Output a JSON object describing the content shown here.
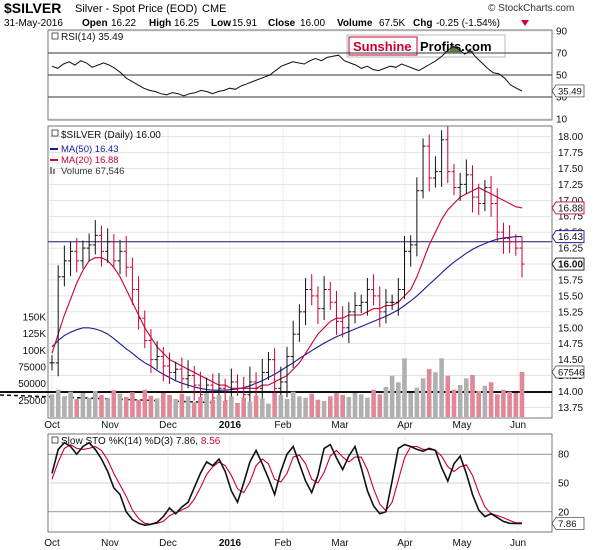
{
  "header": {
    "symbol": "$SILVER",
    "name": "Silver - Spot Price (EOD)",
    "exchange": "CME",
    "date": "31-May-2016",
    "open_label": "Open",
    "open": "16.22",
    "high_label": "High",
    "high": "16.25",
    "low_label": "Low",
    "low": "15.91",
    "close_label": "Close",
    "close": "16.00",
    "volume_label": "Volume",
    "volume": "67.5K",
    "chg_label": "Chg",
    "chg": "-0.25 (-1.54%)",
    "watermark": "© StockCharts.com",
    "brand_sunshine": "Sunshine",
    "brand_profits": "Profits.com"
  },
  "colors": {
    "ma20": "#cc0033",
    "ma50": "#1a1a99",
    "up": "#111111",
    "down": "#cc0033",
    "volume": "#b0b0b0",
    "volume_down": "#e08898",
    "overbought_fill": "#5a7a4a",
    "oversold_fill": "#c09090",
    "grid": "#c8c8c8",
    "hline": "#1a1a66"
  },
  "chart_data": [
    {
      "type": "line",
      "panel": "rsi",
      "label": "RSI(14) 35.49",
      "yticks": [
        10,
        30,
        50,
        70,
        90
      ],
      "ylim": [
        10,
        90
      ],
      "last_value_label": "35.49",
      "last_value": 35.49,
      "reference_lines": [
        30,
        50,
        70
      ],
      "series": [
        {
          "name": "RSI(14)",
          "values": [
            58,
            56,
            60,
            62,
            59,
            63,
            61,
            57,
            59,
            61,
            59,
            56,
            52,
            47,
            44,
            41,
            38,
            36,
            35,
            33,
            32,
            34,
            33,
            31,
            33,
            34,
            36,
            35,
            33,
            35,
            36,
            38,
            37,
            40,
            42,
            44,
            46,
            48,
            50,
            54,
            58,
            60,
            62,
            61,
            60,
            63,
            65,
            63,
            66,
            67,
            68,
            63,
            61,
            59,
            56,
            58,
            55,
            54,
            56,
            58,
            57,
            60,
            58,
            56,
            54,
            57,
            60,
            63,
            67,
            72,
            76,
            73,
            69,
            72,
            66,
            61,
            56,
            52,
            51,
            47,
            41,
            38,
            35.49
          ]
        }
      ]
    },
    {
      "type": "line",
      "panel": "price",
      "title": "$SILVER (Daily) 16.00",
      "x_labels": [
        "Oct",
        "Nov",
        "Dec",
        "2016",
        "Feb",
        "Mar",
        "Apr",
        "May",
        "Jun"
      ],
      "yticks": [
        13.75,
        14.0,
        14.25,
        14.5,
        14.75,
        15.0,
        15.25,
        15.5,
        15.75,
        16.0,
        16.25,
        16.5,
        16.75,
        17.0,
        17.25,
        17.5,
        17.75,
        18.0
      ],
      "ytick_labels": [
        "13.75",
        "14.00",
        "14.25",
        "14.50",
        "14.75",
        "15.00",
        "15.25",
        "15.50",
        "15.75",
        "16.00",
        "16.25",
        "16.50",
        "16.75",
        "17.00",
        "17.25",
        "17.50",
        "17.75",
        "18.00"
      ],
      "ylim": [
        13.6,
        18.15
      ],
      "horizontal_line": 16.35,
      "series": [
        {
          "name": "Close",
          "values": [
            14.45,
            15.8,
            16.05,
            16.2,
            16.05,
            16.25,
            16.3,
            16.45,
            16.2,
            16.35,
            16.05,
            16.2,
            15.95,
            15.6,
            15.15,
            14.8,
            14.5,
            14.55,
            14.4,
            14.3,
            14.35,
            14.2,
            14.25,
            14.1,
            13.95,
            14.1,
            13.9,
            14.05,
            13.85,
            14.15,
            14.05,
            13.95,
            14.15,
            14.05,
            14.3,
            14.5,
            14.05,
            14.15,
            14.55,
            14.9,
            15.25,
            15.6,
            15.5,
            15.3,
            15.6,
            15.4,
            15.1,
            15.0,
            15.25,
            15.35,
            15.4,
            15.6,
            15.5,
            15.25,
            15.4,
            15.4,
            15.6,
            16.2,
            16.3,
            17.15,
            17.85,
            17.35,
            17.45,
            17.95,
            17.45,
            17.2,
            17.25,
            17.4,
            17.05,
            16.95,
            17.2,
            16.95,
            16.5,
            16.4,
            16.35,
            16.25,
            16.0
          ]
        },
        {
          "name": "MA(20) 16.88",
          "values": [
            14.6,
            14.9,
            15.2,
            15.45,
            15.7,
            15.9,
            16.05,
            16.1,
            16.1,
            16.05,
            15.95,
            15.8,
            15.6,
            15.4,
            15.2,
            15.0,
            14.85,
            14.7,
            14.6,
            14.5,
            14.45,
            14.4,
            14.35,
            14.3,
            14.25,
            14.2,
            14.15,
            14.1,
            14.1,
            14.05,
            14.05,
            14.05,
            14.05,
            14.05,
            14.1,
            14.1,
            14.15,
            14.2,
            14.25,
            14.35,
            14.45,
            14.6,
            14.75,
            14.9,
            15.0,
            15.1,
            15.15,
            15.15,
            15.2,
            15.2,
            15.2,
            15.25,
            15.3,
            15.3,
            15.35,
            15.35,
            15.4,
            15.5,
            15.6,
            15.8,
            16.05,
            16.3,
            16.5,
            16.7,
            16.85,
            16.95,
            17.05,
            17.1,
            17.15,
            17.2,
            17.15,
            17.1,
            17.05,
            17.0,
            16.95,
            16.9,
            16.88
          ]
        },
        {
          "name": "MA(50) 16.43",
          "values": [
            14.7,
            14.8,
            14.88,
            14.93,
            14.97,
            15.0,
            15.0,
            14.98,
            14.95,
            14.9,
            14.83,
            14.75,
            14.67,
            14.6,
            14.52,
            14.45,
            14.4,
            14.33,
            14.27,
            14.22,
            14.17,
            14.13,
            14.1,
            14.07,
            14.05,
            14.03,
            14.02,
            14.02,
            14.02,
            14.03,
            14.04,
            14.06,
            14.09,
            14.13,
            14.17,
            14.22,
            14.27,
            14.33,
            14.39,
            14.45,
            14.52,
            14.58,
            14.64,
            14.7,
            14.76,
            14.81,
            14.86,
            14.9,
            14.94,
            14.98,
            15.02,
            15.06,
            15.1,
            15.14,
            15.18,
            15.23,
            15.28,
            15.35,
            15.42,
            15.5,
            15.59,
            15.68,
            15.77,
            15.86,
            15.95,
            16.03,
            16.1,
            16.17,
            16.23,
            16.28,
            16.32,
            16.36,
            16.39,
            16.41,
            16.42,
            16.43,
            16.43
          ]
        }
      ],
      "legend": [
        {
          "name": "$SILVER (Daily)",
          "value": "16.00"
        },
        {
          "name": "MA(50)",
          "value": "16.43"
        },
        {
          "name": "MA(20)",
          "value": "16.88"
        },
        {
          "name": "Volume",
          "value": "67,546"
        }
      ],
      "right_labels": [
        {
          "text": "16.88",
          "value": 16.88
        },
        {
          "text": "16.43",
          "value": 16.43
        },
        {
          "text": "16.00",
          "value": 16.0
        }
      ]
    },
    {
      "type": "bar",
      "panel": "volume",
      "yticks_labels": [
        "150K",
        "125K",
        "100K",
        "75000",
        "50000",
        "25000"
      ],
      "yticks": [
        150000,
        125000,
        100000,
        75000,
        50000,
        25000
      ],
      "last_value_label": "67546",
      "series": [
        {
          "name": "Volume",
          "values": [
            34000,
            41000,
            31000,
            38000,
            27000,
            36000,
            29000,
            39000,
            33000,
            28000,
            40000,
            35000,
            30000,
            37000,
            26000,
            41000,
            32000,
            28000,
            36000,
            33000,
            27000,
            35000,
            31000,
            22000,
            30000,
            36000,
            26000,
            33000,
            24000,
            31000,
            21000,
            29000,
            23000,
            32000,
            28000,
            20000,
            36000,
            33000,
            27000,
            38000,
            31000,
            29000,
            35000,
            26000,
            24000,
            31000,
            36000,
            33000,
            30000,
            36000,
            34000,
            29000,
            41000,
            34000,
            45000,
            62000,
            52000,
            88000,
            36000,
            44000,
            58000,
            72000,
            67000,
            88000,
            62000,
            41000,
            48000,
            58000,
            63000,
            39000,
            47000,
            52000,
            34000,
            41000,
            38000,
            36000,
            67546
          ]
        }
      ]
    },
    {
      "type": "line",
      "panel": "sto",
      "label": "Slow STO %K(14) %D(3) 7.86, 8.56",
      "yticks": [
        20,
        50,
        80
      ],
      "last_value_label": "7.86",
      "x_labels": [
        "Oct",
        "Nov",
        "Dec",
        "2016",
        "Feb",
        "Mar",
        "Apr",
        "May",
        "Jun"
      ],
      "series": [
        {
          "name": "%K(14)",
          "values": [
            60,
            85,
            92,
            88,
            80,
            88,
            92,
            85,
            75,
            62,
            45,
            38,
            20,
            12,
            8,
            6,
            7,
            9,
            15,
            24,
            18,
            25,
            30,
            45,
            60,
            72,
            68,
            75,
            62,
            42,
            30,
            50,
            72,
            84,
            70,
            55,
            38,
            62,
            80,
            88,
            70,
            52,
            40,
            58,
            86,
            90,
            76,
            64,
            78,
            88,
            66,
            42,
            26,
            18,
            20,
            52,
            86,
            90,
            88,
            85,
            83,
            86,
            84,
            66,
            52,
            70,
            78,
            60,
            38,
            22,
            15,
            18,
            14,
            10,
            8,
            7.86,
            7.86
          ]
        },
        {
          "name": "%D(3)",
          "values": [
            54,
            72,
            86,
            90,
            86,
            85,
            86,
            88,
            84,
            74,
            60,
            48,
            36,
            22,
            13,
            8,
            7,
            8,
            10,
            16,
            19,
            22,
            25,
            33,
            45,
            59,
            67,
            72,
            68,
            58,
            44,
            40,
            51,
            68,
            75,
            70,
            54,
            51,
            60,
            77,
            79,
            70,
            54,
            50,
            61,
            78,
            84,
            77,
            72,
            77,
            77,
            64,
            44,
            28,
            21,
            30,
            53,
            76,
            88,
            88,
            85,
            85,
            84,
            78,
            67,
            62,
            67,
            69,
            58,
            40,
            25,
            18,
            16,
            14,
            11,
            8.56,
            8.56
          ]
        }
      ]
    }
  ]
}
